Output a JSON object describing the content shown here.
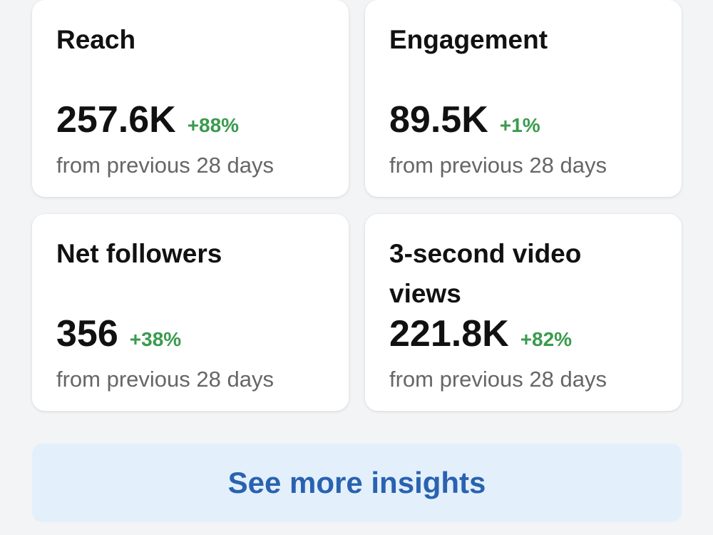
{
  "cards": [
    {
      "title": "Reach",
      "value": "257.6K",
      "change": "+88%",
      "note": "from previous 28 days"
    },
    {
      "title": "Engagement",
      "value": "89.5K",
      "change": "+1%",
      "note": "from previous 28 days"
    },
    {
      "title": "Net followers",
      "value": "356",
      "change": "+38%",
      "note": "from previous 28 days"
    },
    {
      "title": "3-second video views",
      "value": "221.8K",
      "change": "+82%",
      "note": "from previous 28 days"
    }
  ],
  "button": "See more insights"
}
